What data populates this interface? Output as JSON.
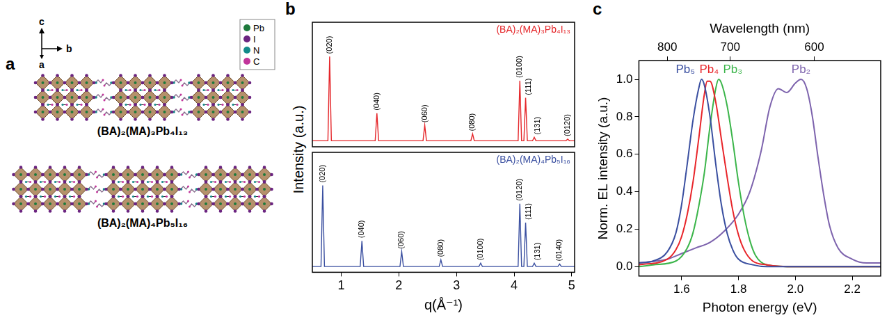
{
  "diagram": {
    "panel": "a",
    "axis_labels": [
      "c",
      "b",
      "a"
    ],
    "key": [
      {
        "label": "Pb",
        "color": "#1e7a3c"
      },
      {
        "label": "I",
        "color": "#6b2480"
      },
      {
        "label": "N",
        "color": "#138a8a"
      },
      {
        "label": "C",
        "color": "#c2359b"
      }
    ],
    "structures": [
      {
        "formula": "(BA)₂(MA)₃Pb₄I₁₃",
        "layers": 4
      },
      {
        "formula": "(BA)₂(MA)₄Pb₅I₁₆",
        "layers": 5
      }
    ]
  },
  "chart_data": [
    {
      "panel": "b",
      "type": "line",
      "title": "(BA)₂(MA)₃Pb₄I₁₃",
      "ylabel": "Intensity (a.u.)",
      "xlim": [
        0.5,
        5.05
      ],
      "ylim": [
        -0.05,
        1.4
      ],
      "tick_labels": false,
      "grid": false,
      "series": [
        {
          "color": "#e5262a",
          "x": [
            0.5,
            0.77,
            0.8,
            0.83,
            1.59,
            1.62,
            1.65,
            2.42,
            2.45,
            2.48,
            3.25,
            3.28,
            3.31,
            4.07,
            4.1,
            4.13,
            4.17,
            4.2,
            4.23,
            4.32,
            4.35,
            4.38,
            4.9,
            4.93,
            4.96,
            5.05
          ],
          "values": [
            0.02,
            0.02,
            1.0,
            0.02,
            0.02,
            0.34,
            0.02,
            0.02,
            0.2,
            0.02,
            0.02,
            0.1,
            0.02,
            0.02,
            0.72,
            0.02,
            0.02,
            0.52,
            0.02,
            0.02,
            0.06,
            0.02,
            0.02,
            0.04,
            0.02,
            0.02
          ]
        }
      ],
      "annotations": [
        {
          "text": "(020)",
          "x": 0.8
        },
        {
          "text": "(040)",
          "x": 1.62
        },
        {
          "text": "(060)",
          "x": 2.45
        },
        {
          "text": "(080)",
          "x": 3.28
        },
        {
          "text": "(0100)",
          "x": 4.1
        },
        {
          "text": "(111)",
          "x": 4.2
        },
        {
          "text": "(131)",
          "x": 4.35
        },
        {
          "text": "(0120)",
          "x": 4.93
        }
      ]
    },
    {
      "type": "line",
      "title": "(BA)₂(MA)₄Pb₅I₁₆",
      "xlabel": "q(Å⁻¹)",
      "xlim": [
        0.5,
        5.05
      ],
      "xticks": [
        1,
        2,
        3,
        4,
        5
      ],
      "ylim": [
        -0.05,
        1.4
      ],
      "tick_labels": "x",
      "grid": false,
      "series": [
        {
          "color": "#3a4fa0",
          "x": [
            0.5,
            0.65,
            0.68,
            0.71,
            1.33,
            1.36,
            1.39,
            2.02,
            2.05,
            2.08,
            2.7,
            2.73,
            2.76,
            3.39,
            3.42,
            3.45,
            4.07,
            4.1,
            4.13,
            4.17,
            4.2,
            4.23,
            4.32,
            4.35,
            4.38,
            4.76,
            4.79,
            4.82,
            5.05
          ],
          "values": [
            0.02,
            0.02,
            1.0,
            0.02,
            0.02,
            0.33,
            0.02,
            0.02,
            0.2,
            0.02,
            0.02,
            0.1,
            0.02,
            0.02,
            0.06,
            0.02,
            0.02,
            0.78,
            0.02,
            0.02,
            0.55,
            0.02,
            0.02,
            0.06,
            0.02,
            0.02,
            0.05,
            0.02,
            0.02
          ]
        }
      ],
      "annotations": [
        {
          "text": "(020)",
          "x": 0.68
        },
        {
          "text": "(040)",
          "x": 1.36
        },
        {
          "text": "(060)",
          "x": 2.05
        },
        {
          "text": "(080)",
          "x": 2.73
        },
        {
          "text": "(0100)",
          "x": 3.42
        },
        {
          "text": "(0120)",
          "x": 4.1
        },
        {
          "text": "(111)",
          "x": 4.2
        },
        {
          "text": "(131)",
          "x": 4.35
        },
        {
          "text": "(0140)",
          "x": 4.79
        }
      ]
    },
    {
      "panel": "c",
      "type": "line",
      "xlabel": "Photon energy (eV)",
      "ylabel": "Norm. EL intensity (a.u.)",
      "x2label": "Wavelength (nm)",
      "xlim": [
        1.45,
        2.3
      ],
      "xticks": [
        1.6,
        1.8,
        {
          "value": 2,
          "label": "2.0"
        },
        2.2
      ],
      "x2lim": [
        855.06,
        539.06
      ],
      "x2ticks": [
        800,
        700,
        600
      ],
      "ylim": [
        -0.05,
        1.1
      ],
      "yticks": [
        {
          "value": 0,
          "label": "0.0"
        },
        0.2,
        0.4,
        0.6,
        0.8,
        {
          "value": 1,
          "label": "1.0"
        }
      ],
      "grid": false,
      "series": [
        {
          "name": "Pb₅",
          "color": "#3a4fa0",
          "x": [
            1.45,
            1.5,
            1.55,
            1.58,
            1.6,
            1.62,
            1.64,
            1.66,
            1.67,
            1.68,
            1.7,
            1.72,
            1.74,
            1.76,
            1.78,
            1.8,
            1.85,
            1.9,
            2.0,
            2.1,
            2.2,
            2.3
          ],
          "values": [
            0.02,
            0.03,
            0.08,
            0.18,
            0.33,
            0.55,
            0.78,
            0.95,
            1.0,
            0.97,
            0.8,
            0.55,
            0.33,
            0.18,
            0.09,
            0.04,
            0.01,
            0.0,
            0.0,
            0.0,
            0.0,
            0.0
          ]
        },
        {
          "name": "Pb₄",
          "color": "#e8252a",
          "x": [
            1.45,
            1.55,
            1.58,
            1.6,
            1.62,
            1.64,
            1.66,
            1.68,
            1.69,
            1.7,
            1.72,
            1.74,
            1.76,
            1.78,
            1.8,
            1.82,
            1.85,
            1.9,
            2.0,
            2.3
          ],
          "values": [
            0.01,
            0.04,
            0.09,
            0.16,
            0.28,
            0.45,
            0.68,
            0.92,
            0.99,
            0.99,
            0.88,
            0.68,
            0.48,
            0.3,
            0.17,
            0.09,
            0.03,
            0.01,
            0.0,
            0.0
          ]
        },
        {
          "name": "Pb₃",
          "color": "#3bb54a",
          "x": [
            1.45,
            1.5,
            1.58,
            1.62,
            1.64,
            1.66,
            1.68,
            1.7,
            1.72,
            1.73,
            1.74,
            1.76,
            1.78,
            1.8,
            1.82,
            1.84,
            1.86,
            1.9,
            2.0,
            2.3
          ],
          "values": [
            0.0,
            0.01,
            0.03,
            0.1,
            0.18,
            0.32,
            0.5,
            0.75,
            0.95,
            1.0,
            0.98,
            0.86,
            0.67,
            0.45,
            0.27,
            0.14,
            0.06,
            0.01,
            0.0,
            0.0
          ]
        },
        {
          "name": "Pb₂",
          "color": "#7d63ad",
          "x": [
            1.45,
            1.55,
            1.6,
            1.65,
            1.7,
            1.75,
            1.8,
            1.84,
            1.88,
            1.91,
            1.94,
            1.97,
            2.0,
            2.02,
            2.04,
            2.06,
            2.08,
            2.1,
            2.12,
            2.15,
            2.2,
            2.25,
            2.3
          ],
          "values": [
            0.02,
            0.04,
            0.07,
            0.1,
            0.13,
            0.19,
            0.28,
            0.4,
            0.62,
            0.85,
            0.95,
            0.93,
            0.98,
            1.0,
            0.95,
            0.8,
            0.58,
            0.38,
            0.22,
            0.1,
            0.04,
            0.02,
            0.02
          ]
        }
      ]
    }
  ]
}
